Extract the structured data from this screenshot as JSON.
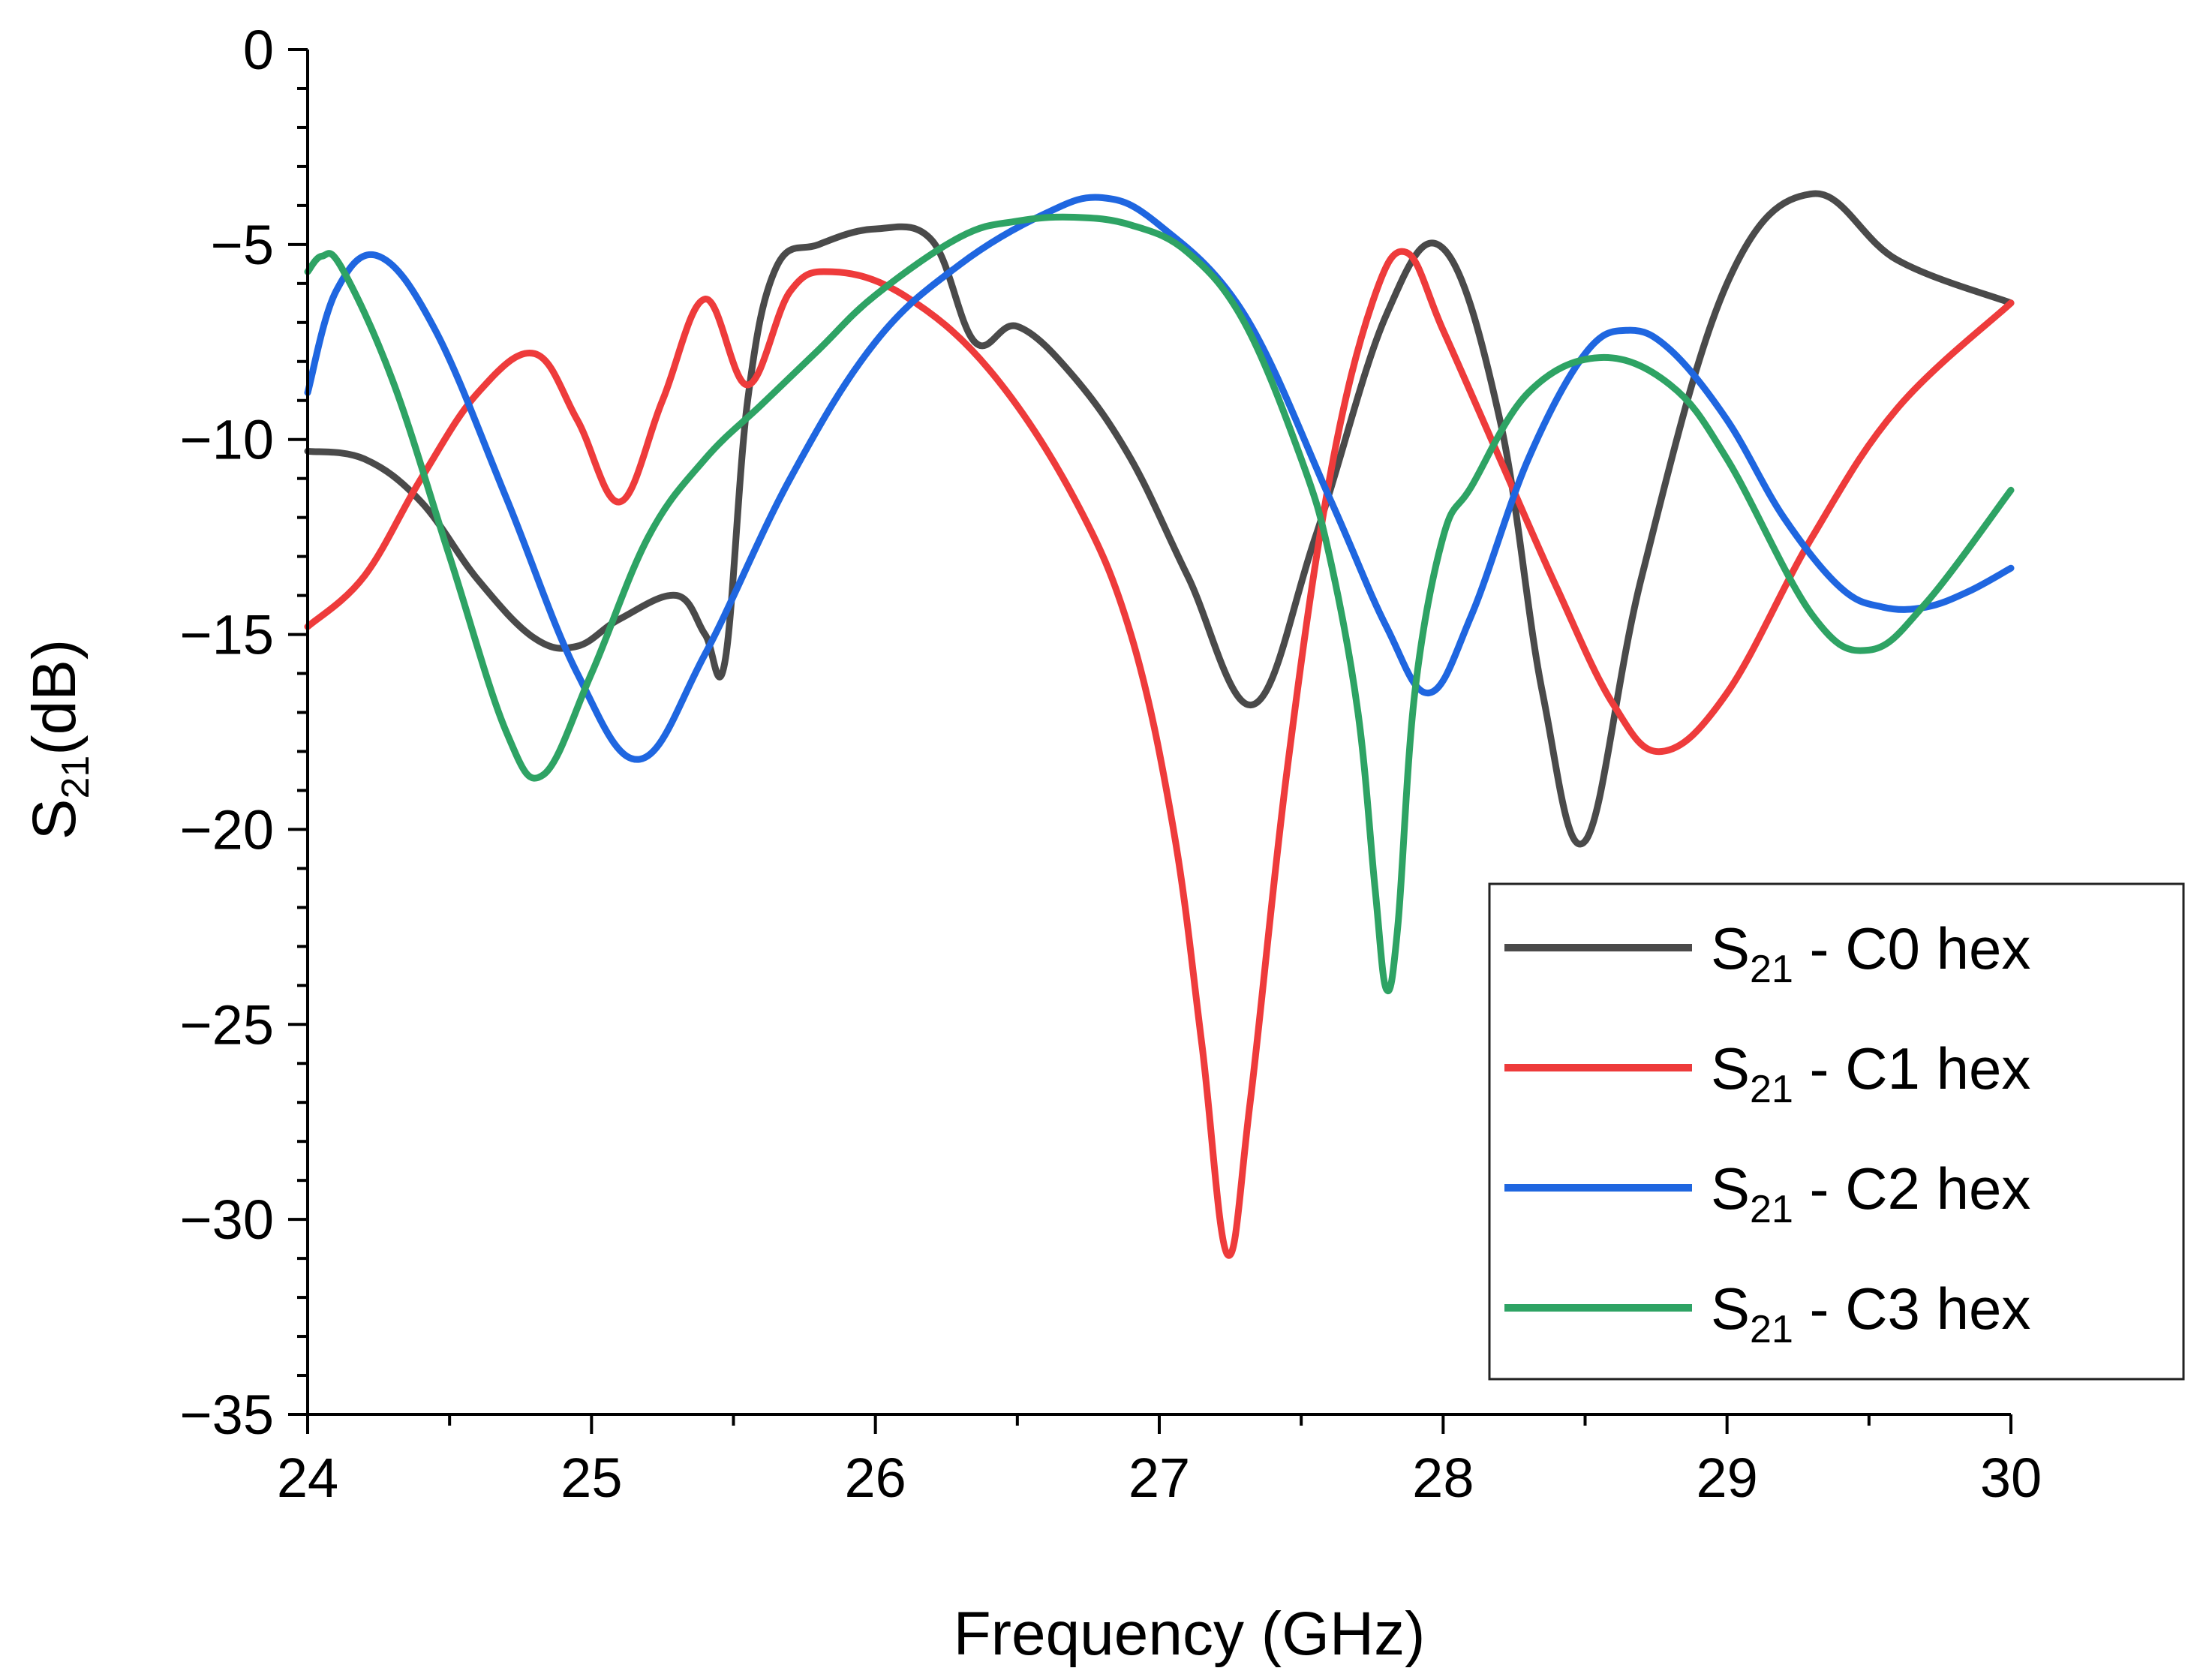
{
  "chart_data": {
    "type": "line",
    "title": "",
    "xlabel": "Frequency (GHz)",
    "ylabel": {
      "main": "S",
      "sub": "21",
      "suffix": "(dB)"
    },
    "xlim": [
      24,
      30
    ],
    "ylim": [
      -35,
      0
    ],
    "xticks": [
      24,
      25,
      26,
      27,
      28,
      29,
      30
    ],
    "yticks": [
      0,
      -5,
      -10,
      -15,
      -20,
      -25,
      -30,
      -35
    ],
    "xtick_labels": [
      "24",
      "25",
      "26",
      "27",
      "28",
      "29",
      "30"
    ],
    "ytick_labels": [
      "0",
      "−5",
      "−10",
      "−15",
      "−20",
      "−25",
      "−30",
      "−35"
    ],
    "grid": false,
    "legend_position": "bottom-right",
    "series": [
      {
        "name": "S21 - C0 hex",
        "legend": {
          "main": "S",
          "sub": "21",
          "rest": " - C0 hex"
        },
        "color": "#4a4a4a",
        "x": [
          24.0,
          24.2,
          24.4,
          24.6,
          24.8,
          24.95,
          25.1,
          25.3,
          25.4,
          25.47,
          25.55,
          25.65,
          25.8,
          26.0,
          26.2,
          26.35,
          26.5,
          26.7,
          26.9,
          27.1,
          27.33,
          27.55,
          27.8,
          28.0,
          28.2,
          28.35,
          28.5,
          28.7,
          29.0,
          29.3,
          29.6,
          30.0
        ],
        "y": [
          -10.3,
          -10.5,
          -11.6,
          -13.6,
          -15.1,
          -15.3,
          -14.6,
          -14.0,
          -15.0,
          -15.7,
          -9.0,
          -5.6,
          -5.0,
          -4.6,
          -4.9,
          -7.5,
          -7.1,
          -8.4,
          -10.5,
          -13.5,
          -16.8,
          -12.5,
          -6.8,
          -5.1,
          -9.5,
          -16.5,
          -20.3,
          -13.5,
          -6.0,
          -3.7,
          -5.4,
          -6.5
        ]
      },
      {
        "name": "S21 - C1 hex",
        "legend": {
          "main": "S",
          "sub": "21",
          "rest": " - C1 hex"
        },
        "color": "#ee3b3b",
        "x": [
          24.0,
          24.2,
          24.4,
          24.6,
          24.8,
          24.95,
          25.1,
          25.25,
          25.4,
          25.55,
          25.7,
          25.85,
          26.1,
          26.4,
          26.7,
          26.9,
          27.05,
          27.15,
          27.24,
          27.32,
          27.45,
          27.6,
          27.75,
          27.87,
          28.0,
          28.2,
          28.4,
          28.6,
          28.77,
          29.0,
          29.3,
          29.6,
          30.0
        ],
        "y": [
          -14.8,
          -13.5,
          -11.0,
          -8.8,
          -7.8,
          -9.5,
          -11.6,
          -9.0,
          -6.4,
          -8.6,
          -6.2,
          -5.7,
          -6.3,
          -8.2,
          -11.5,
          -15.0,
          -20.0,
          -25.5,
          -30.9,
          -27.0,
          -18.5,
          -11.0,
          -6.5,
          -5.2,
          -7.2,
          -10.5,
          -13.8,
          -16.8,
          -18.0,
          -16.5,
          -12.5,
          -9.2,
          -6.5
        ]
      },
      {
        "name": "S21 - C2 hex",
        "legend": {
          "main": "S",
          "sub": "21",
          "rest": " - C2 hex"
        },
        "color": "#1f66e0",
        "x": [
          24.0,
          24.1,
          24.25,
          24.45,
          24.7,
          24.95,
          25.17,
          25.4,
          25.7,
          26.0,
          26.3,
          26.6,
          26.8,
          27.0,
          27.3,
          27.6,
          27.8,
          27.95,
          28.1,
          28.3,
          28.5,
          28.65,
          28.8,
          29.0,
          29.2,
          29.4,
          29.55,
          29.7,
          29.85,
          30.0
        ],
        "y": [
          -8.8,
          -6.2,
          -5.3,
          -7.2,
          -11.5,
          -16.0,
          -18.2,
          -15.5,
          -11.0,
          -7.5,
          -5.5,
          -4.2,
          -3.8,
          -4.5,
          -6.8,
          -11.5,
          -14.8,
          -16.5,
          -14.5,
          -10.5,
          -7.8,
          -7.2,
          -7.7,
          -9.5,
          -12.0,
          -13.8,
          -14.3,
          -14.3,
          -13.9,
          -13.3
        ]
      },
      {
        "name": "S21 - C3 hex",
        "legend": {
          "main": "S",
          "sub": "21",
          "rest": " - C3 hex"
        },
        "color": "#2ea364",
        "x": [
          24.0,
          24.05,
          24.12,
          24.3,
          24.5,
          24.7,
          24.83,
          25.0,
          25.2,
          25.4,
          25.6,
          25.8,
          26.0,
          26.3,
          26.5,
          26.7,
          26.9,
          27.1,
          27.3,
          27.5,
          27.6,
          27.7,
          27.76,
          27.8,
          27.84,
          27.9,
          28.0,
          28.1,
          28.3,
          28.55,
          28.8,
          29.0,
          29.3,
          29.5,
          29.7,
          30.0
        ],
        "y": [
          -5.7,
          -5.3,
          -5.6,
          -8.5,
          -13.0,
          -17.5,
          -18.6,
          -16.0,
          -12.5,
          -10.5,
          -9.1,
          -7.7,
          -6.3,
          -4.8,
          -4.4,
          -4.3,
          -4.5,
          -5.2,
          -7.0,
          -10.5,
          -13.0,
          -17.0,
          -21.5,
          -24.1,
          -22.5,
          -16.5,
          -12.5,
          -11.2,
          -8.8,
          -7.9,
          -8.6,
          -10.5,
          -14.5,
          -15.4,
          -14.2,
          -11.3
        ]
      }
    ]
  }
}
